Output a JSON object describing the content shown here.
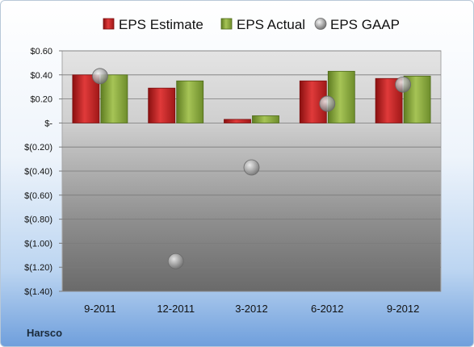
{
  "company": "Harsco",
  "chart_data": {
    "type": "bar",
    "categories": [
      "9-2011",
      "12-2011",
      "3-2012",
      "6-2012",
      "9-2012"
    ],
    "series": [
      {
        "name": "EPS Estimate",
        "kind": "bar",
        "color": "#cc2222",
        "values": [
          0.4,
          0.29,
          0.03,
          0.35,
          0.37
        ]
      },
      {
        "name": "EPS Actual",
        "kind": "bar",
        "color": "#8aac3e",
        "values": [
          0.4,
          0.35,
          0.06,
          0.43,
          0.39
        ]
      },
      {
        "name": "EPS GAAP",
        "kind": "marker",
        "color": "#a0a0a0",
        "values": [
          0.39,
          -1.15,
          -0.37,
          0.16,
          0.32
        ]
      }
    ],
    "ylim": [
      -1.4,
      0.6
    ],
    "yticks": [
      0.6,
      0.4,
      0.2,
      0,
      -0.2,
      -0.4,
      -0.6,
      -0.8,
      -1.0,
      -1.2,
      -1.4
    ],
    "ytick_labels": [
      "$0.60",
      "$0.40",
      "$0.20",
      "$-",
      "$(0.20)",
      "$(0.40)",
      "$(0.60)",
      "$(0.80)",
      "$(1.00)",
      "$(1.20)",
      "$(1.40)"
    ],
    "grid": true,
    "legend": "top"
  }
}
